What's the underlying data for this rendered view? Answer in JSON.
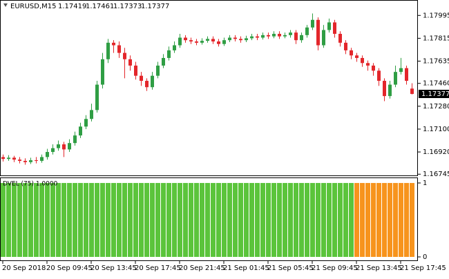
{
  "chart_data": [
    {
      "type": "candlestick",
      "title": "EURUSD,M15",
      "categories": [
        "20 Sep 2018",
        null,
        null,
        null,
        null,
        null,
        null,
        null,
        "20 Sep 09:45",
        null,
        null,
        null,
        null,
        null,
        null,
        null,
        "20 Sep 13:45",
        null,
        null,
        null,
        null,
        null,
        null,
        null,
        "20 Sep 17:45",
        null,
        null,
        null,
        null,
        null,
        null,
        null,
        "20 Sep 21:45",
        null,
        null,
        null,
        null,
        null,
        null,
        null,
        "21 Sep 01:45",
        null,
        null,
        null,
        null,
        null,
        null,
        null,
        "21 Sep 05:45",
        null,
        null,
        null,
        null,
        null,
        null,
        null,
        "21 Sep 09:45",
        null,
        null,
        null,
        null,
        null,
        null,
        null,
        "21 Sep 13:45",
        null,
        null,
        null,
        null,
        null,
        null,
        null,
        "21 Sep 17:45",
        null,
        null
      ],
      "open": [
        1.1688,
        1.16865,
        1.16875,
        1.1686,
        1.1685,
        1.1684,
        1.16855,
        1.1685,
        1.1688,
        1.1692,
        1.1695,
        1.1698,
        1.1694,
        1.1699,
        1.1705,
        1.1712,
        1.1718,
        1.1725,
        1.1745,
        1.1765,
        1.1778,
        1.1776,
        1.177,
        1.1765,
        1.176,
        1.1752,
        1.1748,
        1.1743,
        1.1752,
        1.176,
        1.1766,
        1.1772,
        1.1776,
        1.1782,
        1.178,
        1.1779,
        1.1778,
        1.17795,
        1.1781,
        1.1779,
        1.1777,
        1.178,
        1.1782,
        1.1781,
        1.178,
        1.17815,
        1.1783,
        1.1782,
        1.1784,
        1.1783,
        1.1785,
        1.1783,
        1.1784,
        1.1786,
        1.178,
        1.1784,
        1.179,
        1.1796,
        1.1776,
        1.1788,
        1.1794,
        1.1785,
        1.1778,
        1.1772,
        1.1768,
        1.1766,
        1.1762,
        1.176,
        1.1756,
        1.1748,
        1.1736,
        1.1745,
        1.1755,
        1.1758,
        1.17419
      ],
      "high": [
        1.169,
        1.16895,
        1.1689,
        1.1688,
        1.1687,
        1.16875,
        1.1688,
        1.169,
        1.16945,
        1.1698,
        1.1701,
        1.17,
        1.1702,
        1.1708,
        1.1715,
        1.1721,
        1.173,
        1.1748,
        1.177,
        1.1781,
        1.178,
        1.1779,
        1.1774,
        1.1768,
        1.1763,
        1.1755,
        1.175,
        1.1755,
        1.1763,
        1.1769,
        1.1775,
        1.1779,
        1.1785,
        1.1784,
        1.1782,
        1.1781,
        1.17815,
        1.1783,
        1.1783,
        1.1781,
        1.1782,
        1.1784,
        1.1784,
        1.1783,
        1.17835,
        1.1785,
        1.1785,
        1.1786,
        1.1786,
        1.1787,
        1.1787,
        1.1786,
        1.1788,
        1.1788,
        1.1786,
        1.1792,
        1.1801,
        1.1798,
        1.1792,
        1.1797,
        1.1796,
        1.1787,
        1.178,
        1.1774,
        1.177,
        1.1768,
        1.1764,
        1.1762,
        1.1758,
        1.175,
        1.1748,
        1.176,
        1.1766,
        1.176,
        1.17461
      ],
      "low": [
        1.16845,
        1.1685,
        1.1684,
        1.1683,
        1.1682,
        1.16825,
        1.1683,
        1.16835,
        1.1686,
        1.169,
        1.1693,
        1.1688,
        1.1692,
        1.1697,
        1.1703,
        1.171,
        1.1716,
        1.1723,
        1.1742,
        1.1762,
        1.177,
        1.1766,
        1.175,
        1.1756,
        1.1749,
        1.1744,
        1.174,
        1.1741,
        1.175,
        1.1758,
        1.1764,
        1.177,
        1.1774,
        1.1778,
        1.1777,
        1.1776,
        1.17765,
        1.1778,
        1.1777,
        1.1775,
        1.17755,
        1.17785,
        1.1779,
        1.1778,
        1.17785,
        1.178,
        1.178,
        1.17805,
        1.1781,
        1.17815,
        1.1781,
        1.17815,
        1.1782,
        1.1777,
        1.1778,
        1.1782,
        1.1788,
        1.1772,
        1.1774,
        1.1786,
        1.1782,
        1.1775,
        1.1769,
        1.1765,
        1.1763,
        1.1759,
        1.1756,
        1.1752,
        1.1744,
        1.1732,
        1.1734,
        1.1743,
        1.1753,
        1.1745,
        1.17373
      ],
      "close": [
        1.16865,
        1.16875,
        1.1686,
        1.1685,
        1.1684,
        1.16855,
        1.1685,
        1.1688,
        1.1692,
        1.1695,
        1.1698,
        1.1694,
        1.1699,
        1.1705,
        1.1712,
        1.1718,
        1.1725,
        1.1745,
        1.1765,
        1.1778,
        1.1776,
        1.177,
        1.1765,
        1.176,
        1.1752,
        1.1748,
        1.1743,
        1.1752,
        1.176,
        1.1766,
        1.1772,
        1.1776,
        1.1782,
        1.178,
        1.1779,
        1.1778,
        1.17795,
        1.1781,
        1.1779,
        1.1777,
        1.178,
        1.1782,
        1.1781,
        1.178,
        1.17815,
        1.1783,
        1.1782,
        1.1784,
        1.1783,
        1.1785,
        1.1783,
        1.1784,
        1.1786,
        1.178,
        1.1784,
        1.179,
        1.1796,
        1.1776,
        1.1788,
        1.1794,
        1.1785,
        1.1778,
        1.1772,
        1.1768,
        1.1766,
        1.1762,
        1.176,
        1.1756,
        1.1748,
        1.1736,
        1.1745,
        1.1755,
        1.1758,
        1.1748,
        1.17377
      ],
      "up_color": "#2f9e44",
      "down_color": "#e3262b",
      "ylim": [
        1.1673,
        1.181
      ],
      "yticks": [
        1.17995,
        1.17815,
        1.17635,
        {
          "value": 1.1746,
          "label": "1.17460"
        },
        {
          "value": 1.1728,
          "label": "1.17280"
        },
        {
          "value": 1.171,
          "label": "1.17100"
        },
        {
          "value": 1.1692,
          "label": "1.16920"
        },
        1.16745
      ]
    },
    {
      "type": "histogram",
      "title": "DVEL (75) 1.0000",
      "series": [
        {
          "color": "#5bc43b",
          "values": [
            1,
            1,
            1,
            1,
            1,
            1,
            1,
            1,
            1,
            1,
            1,
            1,
            1,
            1,
            1,
            1,
            1,
            1,
            1,
            1,
            1,
            1,
            1,
            1,
            1,
            1,
            1,
            1,
            1,
            1,
            1,
            1,
            1,
            1,
            1,
            1,
            1,
            1,
            1,
            1,
            1,
            1,
            1,
            1,
            1,
            1,
            1,
            1,
            1,
            1,
            1,
            1,
            1,
            1,
            1,
            1,
            1,
            1,
            1,
            1,
            1,
            1,
            1,
            1,
            null,
            null,
            null,
            null,
            null,
            null,
            null,
            null,
            null,
            null,
            null
          ]
        },
        {
          "color": "#f7941d",
          "values": [
            null,
            null,
            null,
            null,
            null,
            null,
            null,
            null,
            null,
            null,
            null,
            null,
            null,
            null,
            null,
            null,
            null,
            null,
            null,
            null,
            null,
            null,
            null,
            null,
            null,
            null,
            null,
            null,
            null,
            null,
            null,
            null,
            null,
            null,
            null,
            null,
            null,
            null,
            null,
            null,
            null,
            null,
            null,
            null,
            null,
            null,
            null,
            null,
            null,
            null,
            null,
            null,
            null,
            null,
            null,
            null,
            null,
            null,
            null,
            null,
            null,
            null,
            null,
            null,
            1,
            1,
            1,
            1,
            1,
            1,
            1,
            1,
            1,
            1,
            1
          ]
        }
      ],
      "ylim": [
        -0.056,
        1.065
      ],
      "yticks": [
        0,
        1
      ]
    }
  ]
}
